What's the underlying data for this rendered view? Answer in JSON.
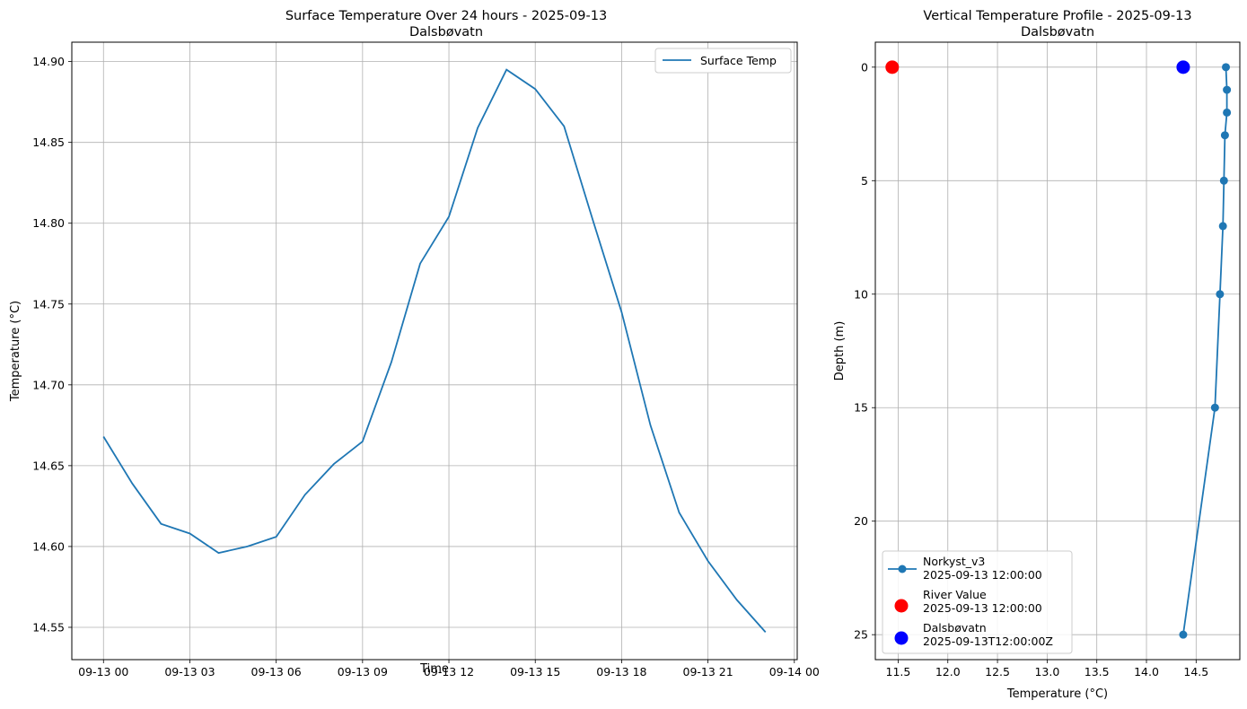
{
  "chart_data": [
    {
      "type": "line",
      "title": "Surface Temperature Over 24 hours - 2025-09-13",
      "subtitle": "Dalsbøvatn",
      "xlabel": "Time",
      "ylabel": "Temperature (°C)",
      "x_tick_labels": [
        "09-13 00",
        "09-13 03",
        "09-13 06",
        "09-13 09",
        "09-13 12",
        "09-13 15",
        "09-13 18",
        "09-13 21",
        "09-14 00"
      ],
      "y_tick_labels": [
        "14.55",
        "14.60",
        "14.65",
        "14.70",
        "14.75",
        "14.80",
        "14.85",
        "14.90"
      ],
      "y_ticks": [
        14.55,
        14.6,
        14.65,
        14.7,
        14.75,
        14.8,
        14.85,
        14.9
      ],
      "xlim_hours": [
        -1.1,
        24.1
      ],
      "ylim": [
        14.53,
        14.912
      ],
      "grid": true,
      "legend": "top-right",
      "series": [
        {
          "name": "Surface Temp",
          "color": "#1f77b4",
          "x": [
            "2025-09-13 00:00",
            "2025-09-13 01:00",
            "2025-09-13 02:00",
            "2025-09-13 03:00",
            "2025-09-13 04:00",
            "2025-09-13 05:00",
            "2025-09-13 06:00",
            "2025-09-13 07:00",
            "2025-09-13 08:00",
            "2025-09-13 09:00",
            "2025-09-13 10:00",
            "2025-09-13 11:00",
            "2025-09-13 12:00",
            "2025-09-13 13:00",
            "2025-09-13 14:00",
            "2025-09-13 15:00",
            "2025-09-13 16:00",
            "2025-09-13 17:00",
            "2025-09-13 18:00",
            "2025-09-13 19:00",
            "2025-09-13 20:00",
            "2025-09-13 21:00",
            "2025-09-13 22:00",
            "2025-09-13 23:00"
          ],
          "values": [
            14.668,
            14.639,
            14.614,
            14.608,
            14.596,
            14.6,
            14.606,
            14.632,
            14.651,
            14.665,
            14.714,
            14.775,
            14.804,
            14.859,
            14.895,
            14.883,
            14.86,
            14.802,
            14.745,
            14.675,
            14.621,
            14.591,
            14.567,
            14.547
          ]
        }
      ]
    },
    {
      "type": "scatter",
      "title": "Vertical Temperature Profile - 2025-09-13",
      "subtitle": "Dalsbøvatn",
      "xlabel": "Temperature (°C)",
      "ylabel": "Depth (m)",
      "x_ticks": [
        11.5,
        12.0,
        12.5,
        13.0,
        13.5,
        14.0,
        14.5
      ],
      "x_tick_labels": [
        "11.5",
        "12.0",
        "12.5",
        "13.0",
        "13.5",
        "14.0",
        "14.5"
      ],
      "y_ticks": [
        0,
        5,
        10,
        15,
        20,
        25
      ],
      "y_tick_labels": [
        "0",
        "5",
        "10",
        "15",
        "20",
        "25"
      ],
      "xlim": [
        11.27,
        14.94
      ],
      "ylim": [
        26.1,
        -1.1
      ],
      "y_inverted": true,
      "grid": true,
      "legend": "bottom-left",
      "series": [
        {
          "name": "Norkyst_v3\n2025-09-13 12:00:00",
          "color": "#1f77b4",
          "marker": "line+points",
          "x": [
            14.8,
            14.81,
            14.81,
            14.79,
            14.78,
            14.77,
            14.74,
            14.69,
            14.37
          ],
          "y": [
            0,
            1,
            2,
            3,
            5,
            7,
            10,
            15,
            25
          ]
        },
        {
          "name": "River Value\n2025-09-13 12:00:00",
          "color": "#ff0000",
          "marker": "large-point",
          "x": [
            11.44
          ],
          "y": [
            0
          ]
        },
        {
          "name": "Dalsbøvatn\n2025-09-13T12:00:00Z",
          "color": "#0000ff",
          "marker": "large-point",
          "x": [
            14.37
          ],
          "y": [
            0
          ]
        }
      ]
    }
  ]
}
